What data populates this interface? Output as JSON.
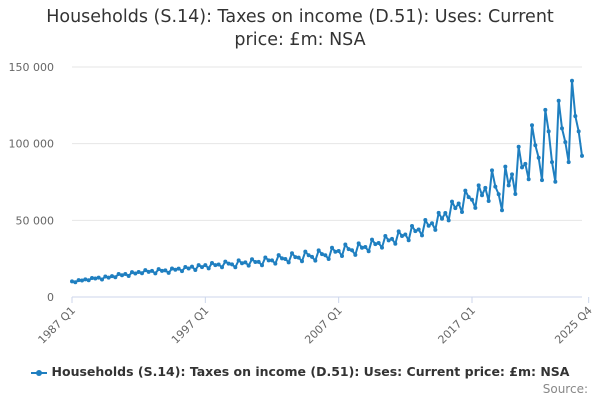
{
  "chart_data": {
    "type": "line",
    "title_line1": "Households (S.14): Taxes on income (D.51): Uses: Current",
    "title_line2": "price: £m: NSA",
    "ylim": [
      0,
      150000
    ],
    "y_ticks": [
      {
        "value": 0,
        "label": "0"
      },
      {
        "value": 50000,
        "label": "50 000"
      },
      {
        "value": 100000,
        "label": "100 000"
      },
      {
        "value": 150000,
        "label": "150 000"
      }
    ],
    "x_tick_labels": [
      {
        "index": 0,
        "label": "1987 Q1"
      },
      {
        "index": 40,
        "label": "1997 Q1"
      },
      {
        "index": 80,
        "label": "2007 Q1"
      },
      {
        "index": 120,
        "label": "2017 Q1"
      },
      {
        "index": 155,
        "label": "2025 Q4"
      }
    ],
    "series": [
      {
        "name": "Households (S.14): Taxes on income (D.51): Uses: Current price: £m: NSA",
        "start": "1987 Q1",
        "end": "2025 Q4",
        "color": "#1f7fc0",
        "values": [
          10200,
          9600,
          11000,
          10800,
          11500,
          10900,
          12400,
          12100,
          12600,
          11400,
          13400,
          12600,
          13600,
          12900,
          15000,
          14200,
          15000,
          13700,
          16200,
          15300,
          16300,
          15500,
          17500,
          16400,
          17000,
          15400,
          18200,
          17000,
          17400,
          15700,
          18600,
          17800,
          18500,
          16900,
          19600,
          18600,
          19800,
          17600,
          20800,
          19500,
          20800,
          18700,
          22200,
          20800,
          21200,
          19400,
          23100,
          21800,
          21300,
          19400,
          23900,
          22000,
          22600,
          20500,
          24600,
          22800,
          22900,
          20700,
          25800,
          23900,
          23900,
          21800,
          27300,
          25200,
          24800,
          22600,
          28500,
          26000,
          25700,
          23300,
          29600,
          27200,
          26200,
          23700,
          30400,
          28000,
          27200,
          24800,
          32100,
          29500,
          30000,
          26700,
          34200,
          31200,
          30500,
          27500,
          35000,
          32100,
          32600,
          29800,
          37400,
          34500,
          35200,
          32200,
          39800,
          36900,
          37900,
          34700,
          42800,
          39800,
          40800,
          37000,
          46300,
          43000,
          44000,
          40200,
          50200,
          46500,
          48100,
          43800,
          54900,
          51000,
          54800,
          50000,
          62200,
          58000,
          61000,
          55400,
          69400,
          65100,
          63400,
          58100,
          72800,
          66400,
          71200,
          62600,
          82600,
          72000,
          67000,
          56600,
          85000,
          72800,
          80000,
          67200,
          98000,
          84500,
          86800,
          76800,
          112000,
          99000,
          90800,
          76200,
          122000,
          108000,
          88000,
          75200,
          128000,
          110000,
          101000,
          88000,
          141000,
          118000,
          108000,
          92000
        ]
      }
    ],
    "legend_label": "Households (S.14): Taxes on income (D.51): Uses: Current price: £m: NSA",
    "credits": "Source:"
  }
}
